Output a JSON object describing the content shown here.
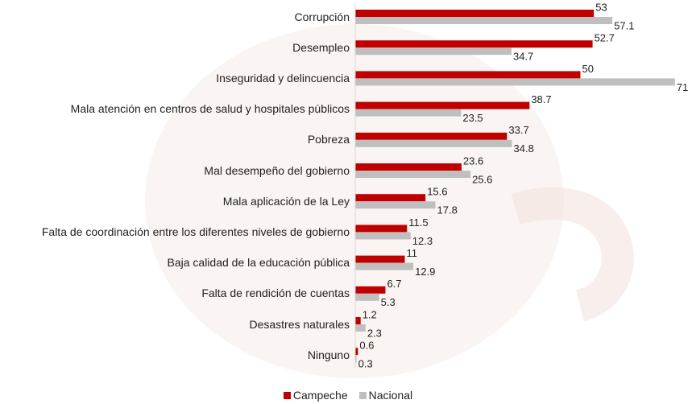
{
  "chart_data": {
    "type": "hbar",
    "categories": [
      "Corrupción",
      "Desempleo",
      "Inseguridad y delincuencia",
      "Mala atención en centros de salud y hospitales públicos",
      "Pobreza",
      "Mal desempeño del gobierno",
      "Mala aplicación de la Ley",
      "Falta de coordinación entre los diferentes niveles de gobierno",
      "Baja calidad de la educación pública",
      "Falta de rendición de cuentas",
      "Desastres naturales",
      "Ninguno"
    ],
    "series": [
      {
        "name": "Campeche",
        "color": "#c00000",
        "values": [
          53,
          52.7,
          50,
          38.7,
          33.7,
          23.6,
          15.6,
          11.5,
          11,
          6.7,
          1.2,
          0.6
        ]
      },
      {
        "name": "Nacional",
        "color": "#bfbfbf",
        "values": [
          57.1,
          34.7,
          71,
          23.5,
          34.8,
          25.6,
          17.8,
          12.3,
          12.9,
          5.3,
          2.3,
          0.3
        ]
      }
    ]
  }
}
